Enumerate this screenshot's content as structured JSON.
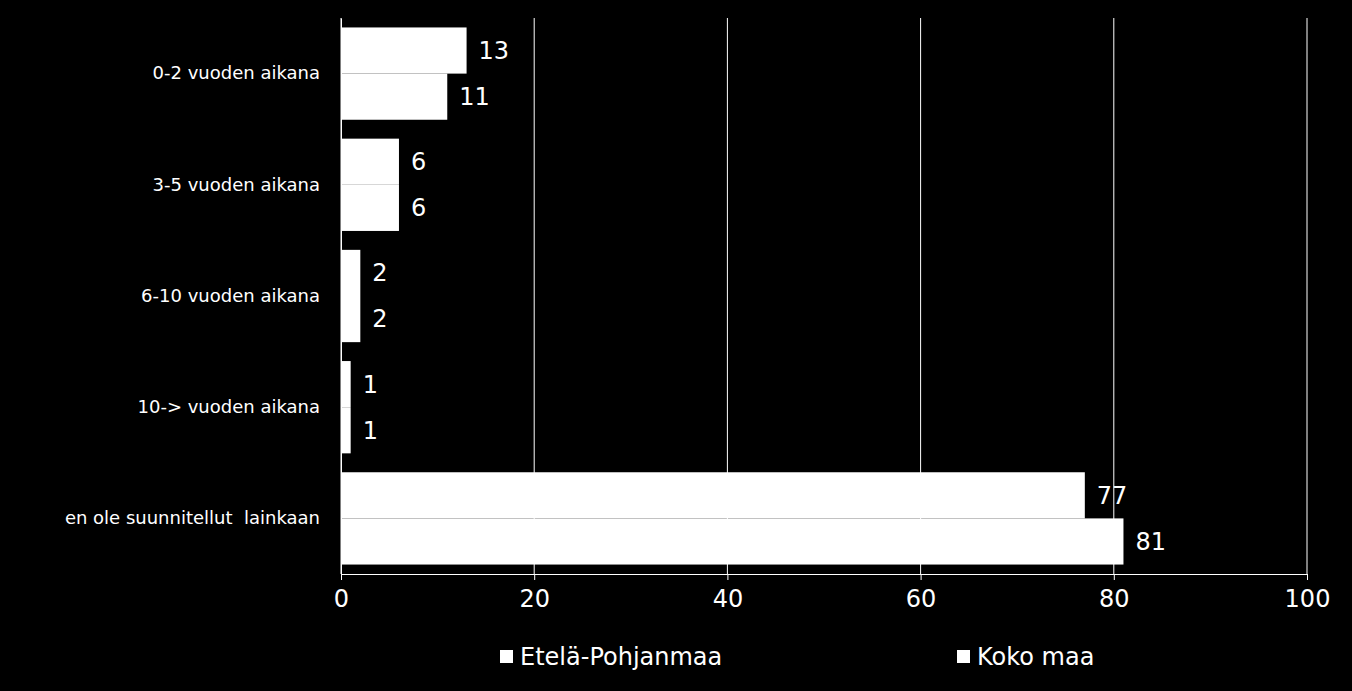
{
  "chart_data": {
    "type": "bar",
    "orientation": "horizontal",
    "categories": [
      "0-2 vuoden aikana",
      "3-5 vuoden aikana",
      "6-10 vuoden aikana",
      "10-> vuoden aikana",
      "en ole suunnitellut  lainkaan"
    ],
    "series": [
      {
        "name": "Etelä-Pohjanmaa",
        "color": "#ffffff",
        "values": [
          13,
          6,
          2,
          1,
          77
        ]
      },
      {
        "name": "Koko maa",
        "color": "#ffffff",
        "values": [
          11,
          6,
          2,
          1,
          81
        ]
      }
    ],
    "xlim": [
      0,
      100
    ],
    "xticks": [
      0,
      20,
      40,
      60,
      80,
      100
    ],
    "grid": true,
    "data_labels": true,
    "legend": "bottom"
  }
}
